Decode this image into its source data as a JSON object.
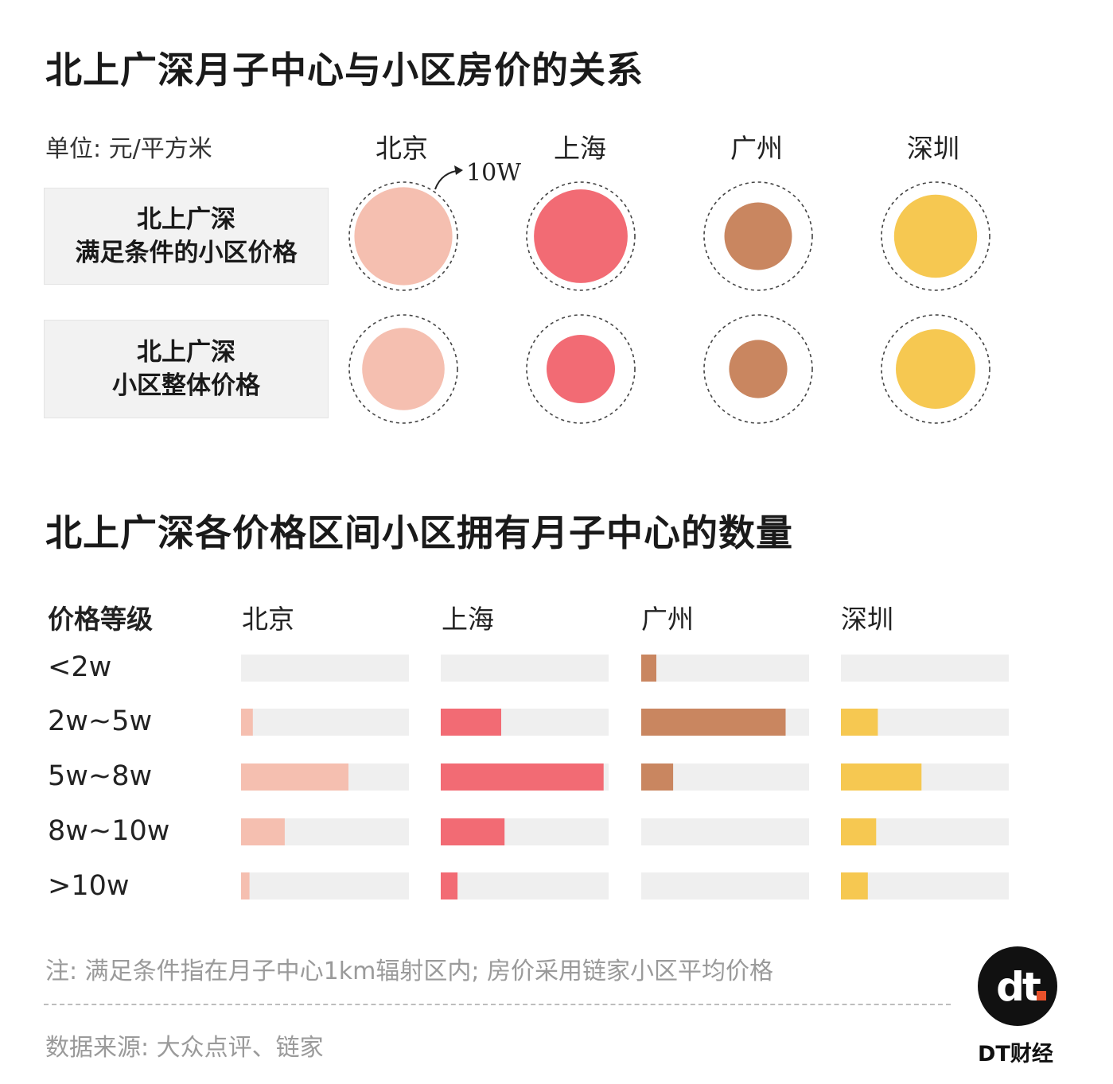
{
  "title1": "北上广深月子中心与小区房价的关系",
  "unit_label": "单位: 元/平方米",
  "ref_annotation": "10W",
  "cities": [
    "北京",
    "上海",
    "广州",
    "深圳"
  ],
  "colors": {
    "北京": "#f5bfb0",
    "上海": "#f26b74",
    "广州": "#c98660",
    "深圳": "#f6c851"
  },
  "row_labels": [
    {
      "line1": "北上广深",
      "line2": "满足条件的小区价格"
    },
    {
      "line1": "北上广深",
      "line2": "小区整体价格"
    }
  ],
  "title2": "北上广深各价格区间小区拥有月子中心的数量",
  "bar_header": "价格等级",
  "tiers": [
    "<2w",
    "2w~5w",
    "5w~8w",
    "8w~10w",
    ">10w"
  ],
  "note": "注: 满足条件指在月子中心1km辐射区内; 房价采用链家小区平均价格",
  "source": "数据来源: 大众点评、链家",
  "brand": "DT财经",
  "logo_text": "dt",
  "chart_data": [
    {
      "type": "bubble",
      "title": "北上广深月子中心与小区房价的关系",
      "unit": "元/平方米",
      "reference": {
        "label": "10W",
        "value": 100000
      },
      "categories": [
        "北京",
        "上海",
        "广州",
        "深圳"
      ],
      "series": [
        {
          "name": "满足条件的小区价格",
          "values": [
            82000,
            75000,
            39000,
            59000
          ]
        },
        {
          "name": "小区整体价格",
          "values": [
            58000,
            40000,
            29000,
            54000
          ]
        }
      ]
    },
    {
      "type": "bar",
      "title": "北上广深各价格区间小区拥有月子中心的数量",
      "categories": [
        "<2w",
        "2w~5w",
        "5w~8w",
        "8w~10w",
        ">10w"
      ],
      "series": [
        {
          "name": "北京",
          "values": [
            0,
            0.07,
            0.64,
            0.26,
            0.05
          ]
        },
        {
          "name": "上海",
          "values": [
            0,
            0.36,
            0.97,
            0.38,
            0.1
          ]
        },
        {
          "name": "广州",
          "values": [
            0.09,
            0.86,
            0.19,
            0,
            0
          ]
        },
        {
          "name": "深圳",
          "values": [
            0,
            0.22,
            0.48,
            0.21,
            0.16
          ]
        }
      ]
    }
  ]
}
